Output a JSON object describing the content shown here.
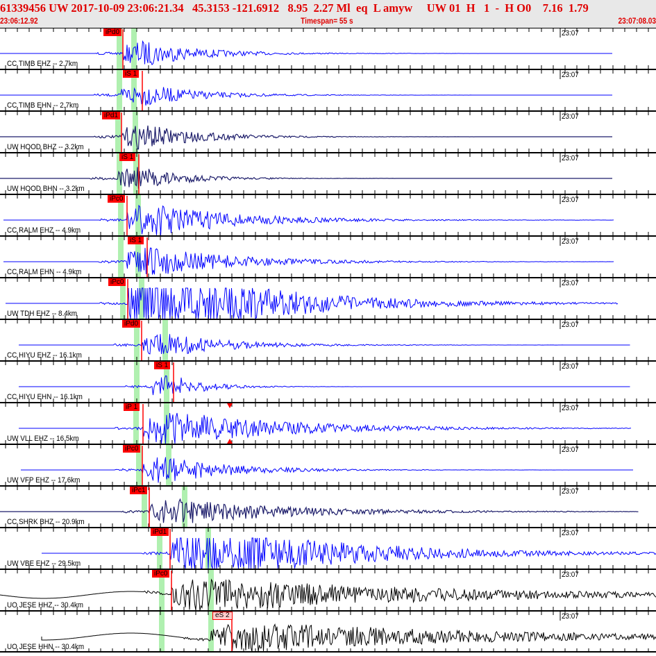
{
  "header": {
    "event_line": "61339456 UW 2017-10-09 23:06:21.34   45.3153 -121.6912   8.95  2.27 Ml  eq  L amyw     UW 01  H   1  -  H O0    7.16  1.79",
    "start_time": "23:06:12.92",
    "timespan": "Timespan=  55 s",
    "end_time": "23:07:08.03"
  },
  "minute_mark": "23:07",
  "colors": {
    "blue": "#0000ff",
    "navy": "#1c1c6a",
    "black": "#000000",
    "pick": "#ff0000",
    "predicted": "#b0f0b0",
    "header_text": "#e00000"
  },
  "channels": [
    {
      "label": "CC TIMB EHZ -- 2.7km",
      "pick": "iPd0",
      "color": "blue"
    },
    {
      "label": "CC TIMB EHN -- 2.7km",
      "pick": "iS 1",
      "color": "blue"
    },
    {
      "label": "UW HOOD BHZ -- 3.2km",
      "pick": "iPd1",
      "color": "navy"
    },
    {
      "label": "UW HOOD BHN -- 3.2km",
      "pick": "iS 1",
      "color": "navy"
    },
    {
      "label": "CC RALM EHZ -- 4.9km",
      "pick": "iPc0",
      "color": "blue"
    },
    {
      "label": "CC RALM EHN -- 4.9km",
      "pick": "iS 1",
      "color": "blue"
    },
    {
      "label": "UW TDH EHZ -- 8.4km",
      "pick": "iPc0",
      "color": "blue"
    },
    {
      "label": "CC HIYU EHZ -- 16.1km",
      "pick": "iPd0",
      "color": "blue"
    },
    {
      "label": "CC HIYU EHN -- 16.1km",
      "pick": "iS 1",
      "color": "blue"
    },
    {
      "label": "UW VLL EHZ -- 16.5km",
      "pick": "iP 1",
      "color": "blue"
    },
    {
      "label": "UW VFP EHZ -- 17.6km",
      "pick": "iPc0",
      "color": "blue"
    },
    {
      "label": "CC SHRK BHZ -- 20.9km",
      "pick": "iPc1",
      "color": "navy"
    },
    {
      "label": "UW VBE EHZ -- 29.5km",
      "pick": "iPd1",
      "color": "blue"
    },
    {
      "label": "UO JESE HHZ -- 30.4km",
      "pick": "iPc0",
      "color": "black"
    },
    {
      "label": "UO JESE HHN -- 30.4km",
      "pick": "eS 2",
      "color": "black"
    }
  ]
}
